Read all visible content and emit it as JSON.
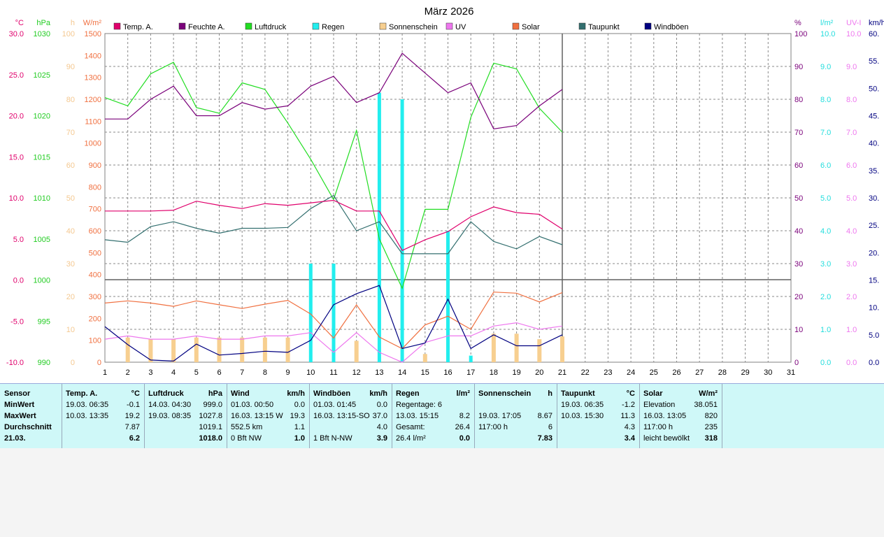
{
  "title": "März 2026",
  "legend": [
    {
      "label": "Temp. A.",
      "color": "#e0006c"
    },
    {
      "label": "Feuchte A.",
      "color": "#7a007a"
    },
    {
      "label": "Luftdruck",
      "color": "#22dd22"
    },
    {
      "label": "Regen",
      "color": "#22eeee"
    },
    {
      "label": "Sonnenschein",
      "color": "#f7cf90"
    },
    {
      "label": "UV",
      "color": "#ee77ee"
    },
    {
      "label": "Solar",
      "color": "#f07040"
    },
    {
      "label": "Taupunkt",
      "color": "#336f6f"
    },
    {
      "label": "Windböen",
      "color": "#000080"
    }
  ],
  "axes": {
    "temp": {
      "unit": "°C",
      "color": "#e0006c",
      "ticks": [
        "30.0",
        "25.0",
        "20.0",
        "15.0",
        "10.0",
        "5.0",
        "0.0",
        "-5.0",
        "-10.0"
      ]
    },
    "press": {
      "unit": "hPa",
      "color": "#22cc22",
      "ticks": [
        "1030",
        "1025",
        "1020",
        "1015",
        "1010",
        "1005",
        "1000",
        "995",
        "990"
      ]
    },
    "sun": {
      "unit": "h",
      "color": "#f4c890",
      "ticks": [
        "100",
        "90",
        "80",
        "70",
        "60",
        "50",
        "40",
        "30",
        "20",
        "10",
        "0"
      ]
    },
    "solar": {
      "unit": "W/m²",
      "color": "#f07040",
      "ticks": [
        "1500",
        "1400",
        "1300",
        "1200",
        "1100",
        "1000",
        "900",
        "800",
        "700",
        "600",
        "500",
        "400",
        "300",
        "200",
        "100",
        "0"
      ]
    },
    "hum": {
      "unit": "%",
      "color": "#7a007a",
      "ticks": [
        "100",
        "90",
        "80",
        "70",
        "60",
        "50",
        "40",
        "30",
        "20",
        "10",
        "0"
      ]
    },
    "rain": {
      "unit": "l/m²",
      "color": "#22dddd",
      "ticks": [
        "10.0",
        "9.0",
        "8.0",
        "7.0",
        "6.0",
        "5.0",
        "4.0",
        "3.0",
        "2.0",
        "1.0",
        "0.0"
      ]
    },
    "uv": {
      "unit": "UV-I",
      "color": "#ee77ee",
      "ticks": [
        "10.0",
        "9.0",
        "8.0",
        "7.0",
        "6.0",
        "5.0",
        "4.0",
        "3.0",
        "2.0",
        "1.0",
        "0.0"
      ]
    },
    "wind": {
      "unit": "km/h",
      "color": "#000080",
      "ticks": [
        "60.",
        "55.",
        "50.",
        "45.",
        "40.",
        "35.",
        "30.",
        "25.",
        "20.",
        "15.",
        "10.",
        "5.0",
        "0.0"
      ]
    },
    "days": [
      "1",
      "2",
      "3",
      "4",
      "5",
      "6",
      "7",
      "8",
      "9",
      "10",
      "11",
      "12",
      "13",
      "14",
      "15",
      "16",
      "17",
      "18",
      "19",
      "20",
      "21",
      "22",
      "23",
      "24",
      "25",
      "26",
      "27",
      "28",
      "29",
      "30",
      "31"
    ]
  },
  "chart_data": {
    "type": "line",
    "title": "März 2026",
    "x": [
      1,
      2,
      3,
      4,
      5,
      6,
      7,
      8,
      9,
      10,
      11,
      12,
      13,
      14,
      15,
      16,
      17,
      18,
      19,
      20,
      21
    ],
    "xlim": [
      1,
      31
    ],
    "series": [
      {
        "name": "Temp. A.",
        "unit": "°C",
        "values": [
          8.4,
          8.4,
          8.4,
          8.5,
          9.6,
          9.1,
          8.7,
          9.3,
          9.1,
          9.4,
          9.7,
          8.4,
          8.4,
          3.6,
          4.9,
          5.9,
          7.7,
          8.9,
          8.2,
          8.0,
          6.2
        ]
      },
      {
        "name": "Feuchte A.",
        "unit": "%",
        "values": [
          74,
          74,
          80,
          84,
          75,
          75,
          79,
          77,
          78,
          84,
          87,
          79,
          82,
          94,
          88,
          82,
          85,
          71,
          72,
          78,
          83
        ]
      },
      {
        "name": "Luftdruck",
        "unit": "hPa",
        "values": [
          1022.2,
          1021.2,
          1025.1,
          1026.5,
          1021.0,
          1020.3,
          1024.0,
          1023.2,
          1019.1,
          1014.7,
          1009.8,
          1018.2,
          1005.0,
          999.0,
          1008.6,
          1008.6,
          1019.8,
          1026.4,
          1025.7,
          1020.9,
          1018.0
        ]
      },
      {
        "name": "Regen",
        "unit": "l/m²",
        "values": [
          0,
          0,
          0,
          0,
          0,
          0,
          0,
          0,
          0,
          3.0,
          3.0,
          0,
          8.2,
          8.0,
          0,
          4.0,
          0.2,
          0,
          0,
          0,
          0
        ]
      },
      {
        "name": "Sonnenschein",
        "unit": "h",
        "values": [
          0,
          7.5,
          7,
          7,
          7.5,
          7.5,
          7.5,
          7.5,
          7.5,
          0,
          0,
          6.5,
          0,
          0,
          2.5,
          0,
          0,
          8.67,
          8.67,
          7,
          7.83
        ]
      },
      {
        "name": "UV",
        "unit": "UV-I",
        "values": [
          0.7,
          0.8,
          0.7,
          0.7,
          0.8,
          0.7,
          0.7,
          0.8,
          0.8,
          0.9,
          0.3,
          0.9,
          0.3,
          0,
          0.6,
          0.8,
          0.8,
          1.1,
          1.2,
          1.0,
          1.1
        ]
      },
      {
        "name": "Solar",
        "unit": "W/m²",
        "values": [
          270,
          280,
          270,
          255,
          280,
          262,
          245,
          265,
          282,
          220,
          110,
          262,
          115,
          62,
          170,
          210,
          150,
          320,
          315,
          275,
          318
        ]
      },
      {
        "name": "Taupunkt",
        "unit": "°C",
        "values": [
          4.9,
          4.6,
          6.5,
          7.1,
          6.3,
          5.7,
          6.3,
          6.3,
          6.4,
          8.7,
          10.3,
          6.0,
          7.1,
          3.2,
          3.2,
          3.2,
          7.1,
          4.7,
          3.8,
          5.3,
          4.3
        ]
      },
      {
        "name": "Windböen",
        "unit": "km/h",
        "values": [
          6.5,
          3.2,
          0.4,
          0.2,
          3.3,
          1.3,
          1.6,
          2.0,
          1.8,
          4.0,
          10.5,
          12.5,
          14.0,
          2.5,
          3.5,
          11.5,
          2.5,
          5.0,
          3.0,
          3.0,
          5.0
        ]
      }
    ],
    "ylim": {
      "temp": [
        -10,
        30
      ],
      "hum": [
        0,
        100
      ],
      "press": [
        990,
        1030
      ],
      "rain": [
        0,
        10
      ],
      "sun": [
        0,
        100
      ],
      "uv": [
        0,
        10
      ],
      "solar": [
        0,
        1500
      ],
      "wind": [
        0,
        60
      ]
    },
    "grid": true,
    "legend_position": "top"
  },
  "stats": {
    "sensor": {
      "header": "Sensor",
      "rows": [
        "MinWert",
        "MaxWert",
        "Durchschnitt",
        "21.03."
      ]
    },
    "temp": {
      "header": "Temp. A.",
      "unit": "°C",
      "rows": [
        [
          "19.03.  06:35",
          "-0.1"
        ],
        [
          "10.03.  13:35",
          "19.2"
        ],
        [
          "",
          "7.87"
        ],
        [
          "",
          "6.2"
        ]
      ]
    },
    "press": {
      "header": "Luftdruck",
      "unit": "hPa",
      "rows": [
        [
          "14.03.  04:30",
          "999.0"
        ],
        [
          "19.03.  08:35",
          "1027.8"
        ],
        [
          "",
          "1019.1"
        ],
        [
          "",
          "1018.0"
        ]
      ]
    },
    "wind": {
      "header": "Wind",
      "unit": "km/h",
      "rows": [
        [
          "01.03.  00:50",
          "0.0"
        ],
        [
          "16.03.  13:15  W",
          "19.3"
        ],
        [
          "552.5 km",
          "1.1"
        ],
        [
          "0 Bft NW",
          "1.0"
        ]
      ]
    },
    "gust": {
      "header": "Windböen",
      "unit": "km/h",
      "rows": [
        [
          "01.03.  01:45",
          "0.0"
        ],
        [
          "16.03.  13:15-SO",
          "37.0"
        ],
        [
          "",
          "4.0"
        ],
        [
          "1 Bft N-NW",
          "3.9"
        ]
      ]
    },
    "rain": {
      "header": "Regen",
      "unit": "l/m²",
      "rows": [
        [
          "Regentage: 6",
          ""
        ],
        [
          "13.03.  15:15",
          "8.2"
        ],
        [
          "Gesamt:",
          "26.4"
        ],
        [
          "26.4 l/m²",
          "0.0"
        ]
      ]
    },
    "sun": {
      "header": "Sonnenschein",
      "unit": "h",
      "rows": [
        [
          "",
          ""
        ],
        [
          "19.03.  17:05",
          "8.67"
        ],
        [
          "117:00 h",
          "6"
        ],
        [
          "",
          "7.83"
        ]
      ]
    },
    "dew": {
      "header": "Taupunkt",
      "unit": "°C",
      "rows": [
        [
          "19.03.  06:35",
          "-1.2"
        ],
        [
          "10.03.  15:30",
          "11.3"
        ],
        [
          "",
          "4.3"
        ],
        [
          "",
          "3.4"
        ]
      ]
    },
    "solar": {
      "header": "Solar",
      "unit": "W/m²",
      "rows": [
        [
          "Elevation",
          "38.051"
        ],
        [
          "16.03.  13:05",
          "820"
        ],
        [
          "117:00 h",
          "235"
        ],
        [
          "leicht bewölkt",
          "318"
        ]
      ]
    }
  }
}
